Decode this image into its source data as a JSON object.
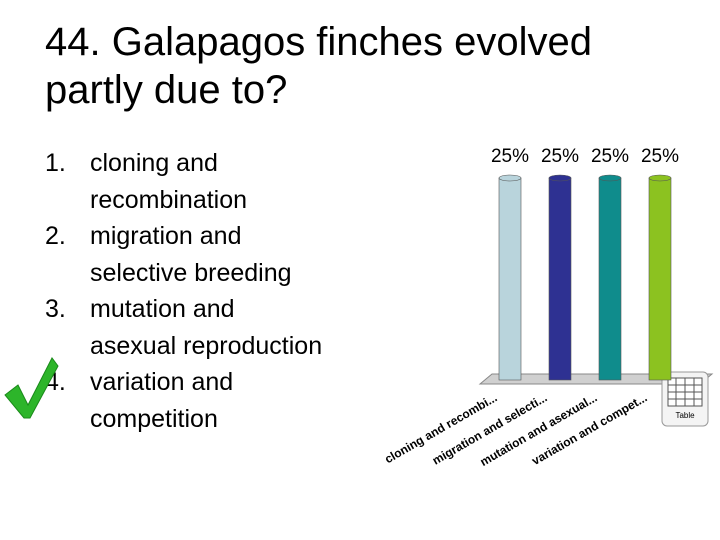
{
  "slide": {
    "title_lines": [
      "44. Galapagos finches evolved",
      "partly due to?"
    ],
    "answers": [
      {
        "number": "1.",
        "lines": [
          "cloning and",
          "recombination"
        ]
      },
      {
        "number": "2.",
        "lines": [
          "migration and",
          "selective breeding"
        ]
      },
      {
        "number": "3.",
        "lines": [
          "mutation and",
          "asexual reproduction"
        ]
      },
      {
        "number": "4.",
        "lines": [
          "variation and",
          "competition"
        ]
      }
    ],
    "table_icon_label": "Table"
  },
  "chart_data": {
    "type": "bar3d",
    "categories": [
      "cloning and recombi...",
      "migration and selecti...",
      "mutation and asexual...",
      "variation and compet..."
    ],
    "values": [
      25,
      25,
      25,
      25
    ],
    "value_labels": [
      "25%",
      "25%",
      "25%",
      "25%"
    ],
    "colors": [
      "#b9d4dc",
      "#2e3192",
      "#0f8c8c",
      "#8cc220"
    ],
    "ylim": [
      0,
      25
    ]
  }
}
